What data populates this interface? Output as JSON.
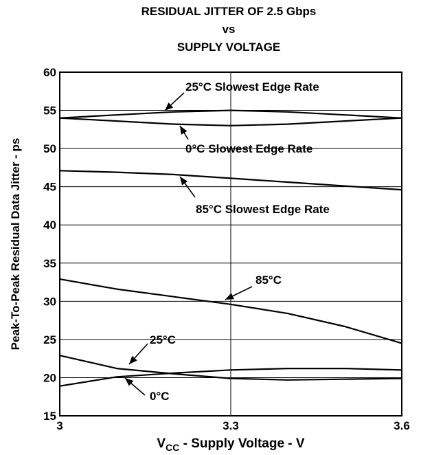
{
  "chart_data": {
    "type": "line",
    "title_lines": [
      "RESIDUAL JITTER OF 2.5 Gbps",
      "vs",
      "SUPPLY VOLTAGE"
    ],
    "xlabel": {
      "main": "V",
      "sub": "CC",
      "rest": " - Supply Voltage - V"
    },
    "ylabel": "Peak-To-Peak Residual Data Jitter - ps",
    "xlim": [
      3,
      3.6
    ],
    "ylim": [
      15,
      60
    ],
    "xticks": [
      "3",
      "3.3",
      "3.6"
    ],
    "yticks": [
      "15",
      "20",
      "25",
      "30",
      "35",
      "40",
      "45",
      "50",
      "55",
      "60"
    ],
    "grid": true,
    "series": [
      {
        "name": "25°C Slowest Edge Rate",
        "x": [
          3.0,
          3.1,
          3.2,
          3.3,
          3.4,
          3.5,
          3.6
        ],
        "y": [
          54.0,
          54.4,
          54.8,
          55.0,
          54.8,
          54.4,
          54.0
        ]
      },
      {
        "name": "0°C Slowest Edge Rate",
        "x": [
          3.0,
          3.1,
          3.2,
          3.3,
          3.4,
          3.5,
          3.6
        ],
        "y": [
          54.0,
          53.6,
          53.2,
          53.0,
          53.2,
          53.6,
          54.0
        ]
      },
      {
        "name": "85°C Slowest Edge Rate",
        "x": [
          3.0,
          3.1,
          3.2,
          3.3,
          3.4,
          3.5,
          3.6
        ],
        "y": [
          47.1,
          46.9,
          46.6,
          46.1,
          45.6,
          45.1,
          44.6
        ]
      },
      {
        "name": "85°C",
        "x": [
          3.0,
          3.1,
          3.2,
          3.3,
          3.4,
          3.5,
          3.6
        ],
        "y": [
          32.9,
          31.6,
          30.6,
          29.6,
          28.4,
          26.7,
          24.5
        ]
      },
      {
        "name": "25°C",
        "x": [
          3.0,
          3.1,
          3.2,
          3.3,
          3.4,
          3.5,
          3.6
        ],
        "y": [
          22.9,
          21.2,
          20.5,
          19.9,
          19.7,
          19.8,
          19.9
        ]
      },
      {
        "name": "0°C",
        "x": [
          3.0,
          3.1,
          3.2,
          3.3,
          3.4,
          3.5,
          3.6
        ],
        "y": [
          18.9,
          20.1,
          20.6,
          21.0,
          21.2,
          21.2,
          21.0
        ]
      }
    ]
  }
}
